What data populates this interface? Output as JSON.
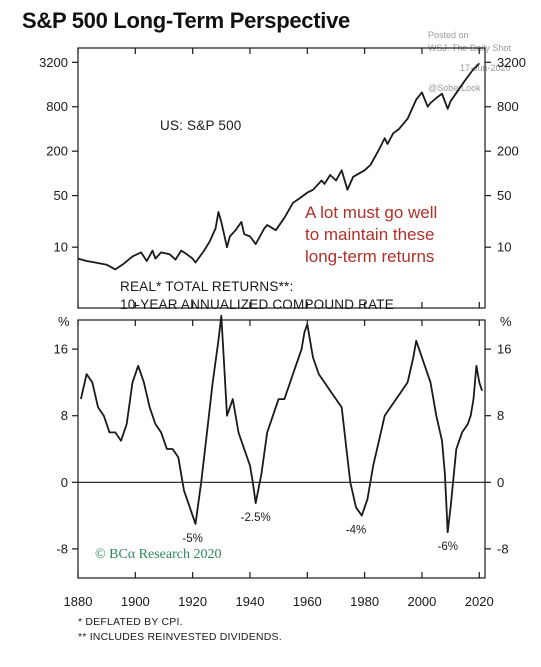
{
  "title": "S&P 500 Long-Term Perspective",
  "watermark": [
    "Posted on",
    "WSJ. The Daily Shot",
    "17-Jun-2020",
    "@SoberLook"
  ],
  "copyright": "© BCα Research 2020",
  "footnotes": [
    "* DEFLATED BY CPI.",
    "** INCLUDES REINVESTED DIVIDENDS."
  ],
  "x_ticks": [
    1880,
    1900,
    1920,
    1940,
    1960,
    1980,
    2000,
    2020
  ],
  "chart_data": [
    {
      "type": "line",
      "scale": "log",
      "series_label": "US: S&P 500",
      "annotation": [
        "A lot must go well",
        "to maintain these",
        "long-term returns"
      ],
      "annotation_color": "#b0302a",
      "yticks": [
        10,
        50,
        200,
        800,
        3200
      ],
      "ylim": [
        1.5,
        5000
      ],
      "xlim": [
        1880,
        2022
      ],
      "x": [
        1880,
        1883,
        1886,
        1890,
        1893,
        1896,
        1899,
        1902,
        1904,
        1906,
        1907,
        1909,
        1912,
        1914,
        1916,
        1918,
        1920,
        1921,
        1924,
        1926,
        1928,
        1929,
        1930,
        1932,
        1933,
        1935,
        1937,
        1938,
        1940,
        1942,
        1945,
        1946,
        1949,
        1952,
        1955,
        1957,
        1960,
        1962,
        1965,
        1966,
        1968,
        1970,
        1972,
        1974,
        1976,
        1980,
        1982,
        1985,
        1987,
        1988,
        1990,
        1992,
        1995,
        1998,
        2000,
        2002,
        2003,
        2005,
        2007,
        2009,
        2010,
        2013,
        2015,
        2018,
        2019,
        2020
      ],
      "y": [
        7,
        6.5,
        6.2,
        5.8,
        5,
        6,
        7.5,
        8.5,
        6.5,
        9,
        7,
        8.5,
        8,
        6.8,
        9,
        8,
        7,
        6.2,
        9,
        12,
        18,
        30,
        22,
        10,
        14,
        17,
        22,
        15,
        14,
        11,
        18,
        20,
        17,
        25,
        40,
        45,
        55,
        60,
        80,
        72,
        95,
        80,
        110,
        60,
        90,
        110,
        130,
        210,
        300,
        250,
        350,
        400,
        550,
        1000,
        1250,
        800,
        900,
        1050,
        1200,
        750,
        950,
        1400,
        1800,
        2600,
        2800,
        3100
      ]
    },
    {
      "type": "line",
      "series_label": "REAL* TOTAL RETURNS**: 10-YEAR ANNUALIZED COMPOUND RATE",
      "unit": "%",
      "yticks": [
        -8,
        0,
        8,
        16
      ],
      "ylim": [
        -11.5,
        19.5
      ],
      "xlim": [
        1880,
        2022
      ],
      "x": [
        1881,
        1883,
        1885,
        1887,
        1889,
        1891,
        1893,
        1895,
        1897,
        1899,
        1901,
        1903,
        1905,
        1907,
        1909,
        1911,
        1913,
        1915,
        1917,
        1919,
        1920,
        1921,
        1923,
        1925,
        1927,
        1929,
        1930,
        1931,
        1932,
        1934,
        1936,
        1938,
        1940,
        1941,
        1942,
        1944,
        1946,
        1948,
        1950,
        1952,
        1954,
        1956,
        1958,
        1959,
        1960,
        1962,
        1964,
        1966,
        1968,
        1970,
        1972,
        1974,
        1975,
        1977,
        1979,
        1981,
        1983,
        1985,
        1987,
        1989,
        1991,
        1993,
        1995,
        1997,
        1998,
        1999,
        2001,
        2003,
        2005,
        2007,
        2008,
        2009,
        2010,
        2012,
        2014,
        2016,
        2017,
        2018,
        2019,
        2020,
        2021
      ],
      "y": [
        10,
        13,
        12,
        9,
        8,
        6,
        6,
        5,
        7,
        12,
        14,
        12,
        9,
        7,
        6,
        4,
        4,
        3,
        -1,
        -3,
        -4,
        -5,
        0,
        6,
        12,
        17,
        20,
        14,
        8,
        10,
        6,
        4,
        2,
        0,
        -2.5,
        1,
        6,
        8,
        10,
        10,
        12,
        14,
        16,
        18,
        19,
        15,
        13,
        12,
        11,
        10,
        9,
        3,
        0,
        -3,
        -4,
        -2,
        2,
        5,
        8,
        9,
        10,
        11,
        12,
        15,
        17,
        16,
        14,
        12,
        8,
        5,
        1,
        -6,
        -3,
        4,
        6,
        7,
        8,
        10,
        14,
        12,
        11
      ],
      "callouts": [
        {
          "x": 1920,
          "y": -5,
          "label": "-5%"
        },
        {
          "x": 1942,
          "y": -2.5,
          "label": "-2.5%"
        },
        {
          "x": 1977,
          "y": -4,
          "label": "-4%"
        },
        {
          "x": 2009,
          "y": -6,
          "label": "-6%"
        }
      ]
    }
  ]
}
